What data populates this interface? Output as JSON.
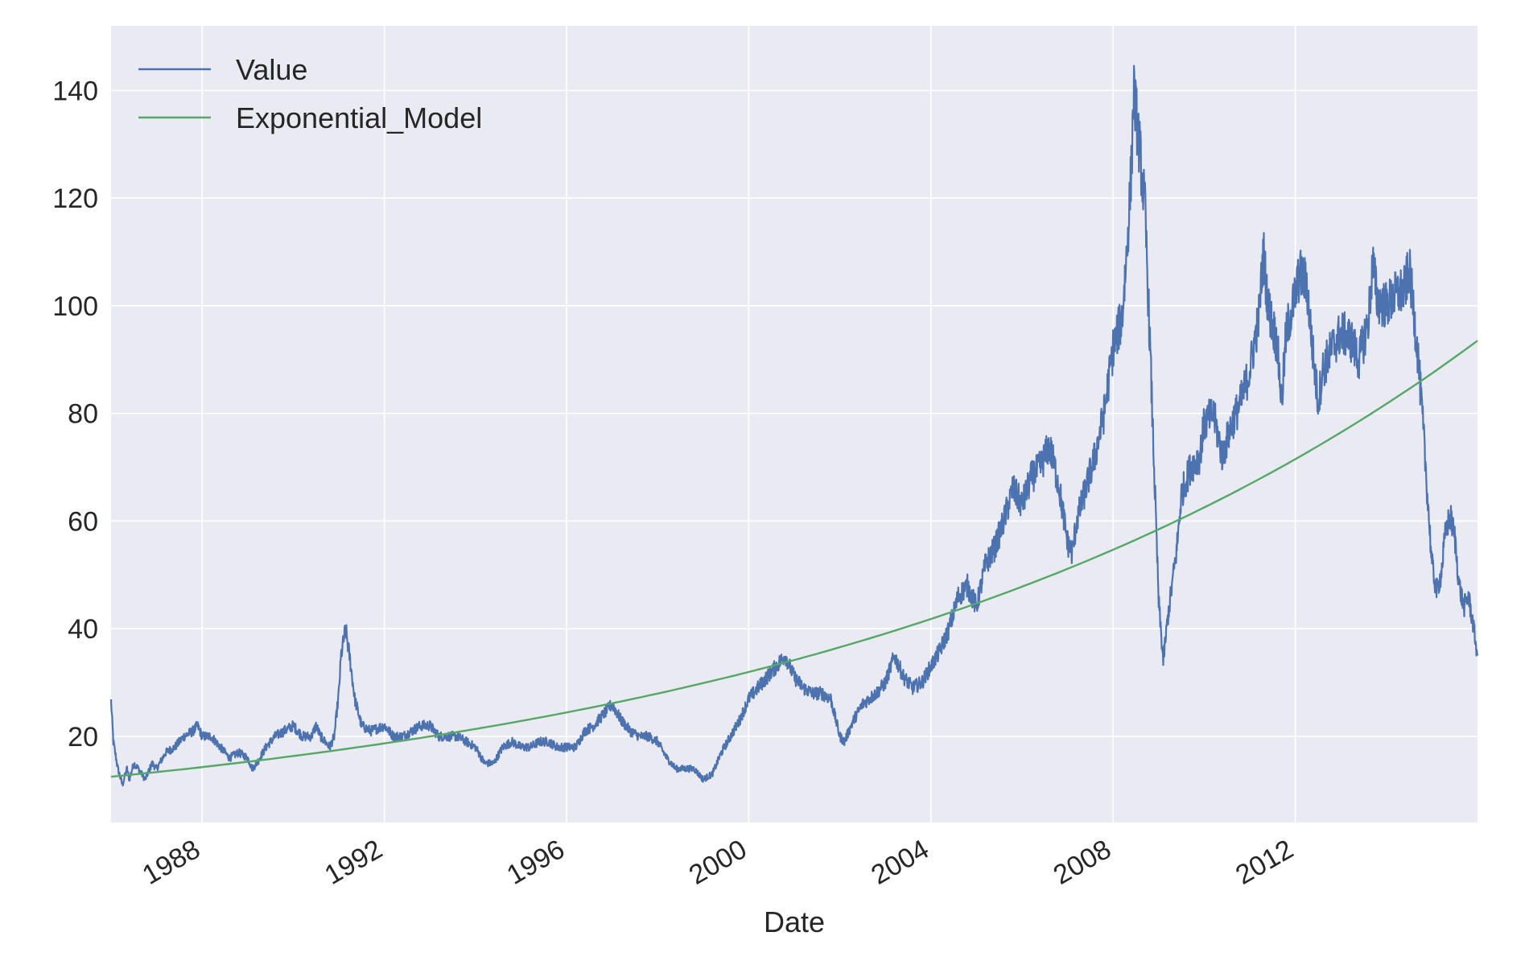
{
  "chart_data": {
    "type": "line",
    "title": "",
    "xlabel": "Date",
    "ylabel": "",
    "xlim": [
      1986.0,
      2016.0
    ],
    "ylim": [
      4,
      152
    ],
    "grid": true,
    "legend_position": "top-left",
    "x_ticks": [
      {
        "value": 1988,
        "label": "1988"
      },
      {
        "value": 1992,
        "label": "1992"
      },
      {
        "value": 1996,
        "label": "1996"
      },
      {
        "value": 2000,
        "label": "2000"
      },
      {
        "value": 2004,
        "label": "2004"
      },
      {
        "value": 2008,
        "label": "2008"
      },
      {
        "value": 2012,
        "label": "2012"
      }
    ],
    "y_ticks": [
      {
        "value": 20,
        "label": "20"
      },
      {
        "value": 40,
        "label": "40"
      },
      {
        "value": 60,
        "label": "60"
      },
      {
        "value": 80,
        "label": "80"
      },
      {
        "value": 100,
        "label": "100"
      },
      {
        "value": 120,
        "label": "120"
      },
      {
        "value": 140,
        "label": "140"
      }
    ],
    "colors": {
      "background": "#EAEAF2",
      "grid": "#FFFFFF",
      "value": "#4C72B0",
      "model": "#55A868"
    },
    "series": [
      {
        "name": "Value",
        "color": "#4C72B0",
        "points": [
          [
            1986.0,
            26.5
          ],
          [
            1986.05,
            19
          ],
          [
            1986.15,
            14
          ],
          [
            1986.25,
            11
          ],
          [
            1986.35,
            14
          ],
          [
            1986.4,
            12
          ],
          [
            1986.5,
            15
          ],
          [
            1986.6,
            14
          ],
          [
            1986.75,
            12
          ],
          [
            1986.9,
            15
          ],
          [
            1987.0,
            14
          ],
          [
            1987.2,
            17
          ],
          [
            1987.4,
            18
          ],
          [
            1987.6,
            20
          ],
          [
            1987.8,
            21
          ],
          [
            1987.9,
            22
          ],
          [
            1988.0,
            20
          ],
          [
            1988.2,
            20
          ],
          [
            1988.4,
            18
          ],
          [
            1988.6,
            16
          ],
          [
            1988.8,
            17
          ],
          [
            1989.0,
            16
          ],
          [
            1989.1,
            14
          ],
          [
            1989.2,
            15
          ],
          [
            1989.4,
            18
          ],
          [
            1989.6,
            20
          ],
          [
            1989.8,
            21
          ],
          [
            1990.0,
            22
          ],
          [
            1990.2,
            20
          ],
          [
            1990.4,
            20
          ],
          [
            1990.5,
            22
          ],
          [
            1990.6,
            20
          ],
          [
            1990.8,
            18
          ],
          [
            1990.9,
            20
          ],
          [
            1991.0,
            28
          ],
          [
            1991.05,
            35
          ],
          [
            1991.15,
            40
          ],
          [
            1991.25,
            34
          ],
          [
            1991.35,
            27
          ],
          [
            1991.5,
            22
          ],
          [
            1991.7,
            21
          ],
          [
            1992.0,
            22
          ],
          [
            1992.2,
            20
          ],
          [
            1992.4,
            20
          ],
          [
            1992.6,
            21
          ],
          [
            1992.8,
            22
          ],
          [
            1993.0,
            22
          ],
          [
            1993.2,
            20
          ],
          [
            1993.4,
            20
          ],
          [
            1993.6,
            20
          ],
          [
            1993.8,
            19
          ],
          [
            1994.0,
            18
          ],
          [
            1994.2,
            15
          ],
          [
            1994.4,
            15
          ],
          [
            1994.6,
            18
          ],
          [
            1994.8,
            19
          ],
          [
            1995.0,
            18
          ],
          [
            1995.2,
            18
          ],
          [
            1995.4,
            19
          ],
          [
            1995.6,
            19
          ],
          [
            1995.8,
            18
          ],
          [
            1996.0,
            18
          ],
          [
            1996.2,
            18
          ],
          [
            1996.4,
            21
          ],
          [
            1996.6,
            22
          ],
          [
            1996.8,
            24
          ],
          [
            1997.0,
            26
          ],
          [
            1997.2,
            23
          ],
          [
            1997.4,
            21
          ],
          [
            1997.6,
            20
          ],
          [
            1997.8,
            20
          ],
          [
            1998.0,
            19
          ],
          [
            1998.2,
            16
          ],
          [
            1998.4,
            14
          ],
          [
            1998.6,
            14
          ],
          [
            1998.8,
            14
          ],
          [
            1999.0,
            12
          ],
          [
            1999.2,
            13
          ],
          [
            1999.4,
            17
          ],
          [
            1999.6,
            20
          ],
          [
            1999.8,
            23
          ],
          [
            2000.0,
            27
          ],
          [
            2000.2,
            29
          ],
          [
            2000.4,
            31
          ],
          [
            2000.6,
            33
          ],
          [
            2000.8,
            35
          ],
          [
            2001.0,
            31
          ],
          [
            2001.2,
            29
          ],
          [
            2001.4,
            28
          ],
          [
            2001.6,
            28
          ],
          [
            2001.8,
            27
          ],
          [
            2002.0,
            20
          ],
          [
            2002.1,
            19
          ],
          [
            2002.3,
            23
          ],
          [
            2002.5,
            26
          ],
          [
            2002.8,
            28
          ],
          [
            2003.0,
            30
          ],
          [
            2003.2,
            35
          ],
          [
            2003.4,
            31
          ],
          [
            2003.6,
            29
          ],
          [
            2003.8,
            30
          ],
          [
            2004.0,
            33
          ],
          [
            2004.2,
            36
          ],
          [
            2004.4,
            40
          ],
          [
            2004.6,
            46
          ],
          [
            2004.8,
            48
          ],
          [
            2005.0,
            44
          ],
          [
            2005.2,
            52
          ],
          [
            2005.4,
            55
          ],
          [
            2005.6,
            60
          ],
          [
            2005.8,
            66
          ],
          [
            2006.0,
            63
          ],
          [
            2006.2,
            68
          ],
          [
            2006.4,
            70
          ],
          [
            2006.6,
            74
          ],
          [
            2006.8,
            67
          ],
          [
            2007.0,
            56
          ],
          [
            2007.1,
            54
          ],
          [
            2007.2,
            60
          ],
          [
            2007.4,
            66
          ],
          [
            2007.6,
            72
          ],
          [
            2007.8,
            80
          ],
          [
            2008.0,
            92
          ],
          [
            2008.1,
            95
          ],
          [
            2008.2,
            98
          ],
          [
            2008.3,
            110
          ],
          [
            2008.4,
            125
          ],
          [
            2008.45,
            140
          ],
          [
            2008.55,
            132
          ],
          [
            2008.7,
            118
          ],
          [
            2008.8,
            95
          ],
          [
            2008.9,
            70
          ],
          [
            2009.0,
            45
          ],
          [
            2009.1,
            34
          ],
          [
            2009.2,
            42
          ],
          [
            2009.4,
            55
          ],
          [
            2009.5,
            65
          ],
          [
            2009.7,
            70
          ],
          [
            2009.9,
            72
          ],
          [
            2010.0,
            78
          ],
          [
            2010.2,
            80
          ],
          [
            2010.4,
            72
          ],
          [
            2010.6,
            78
          ],
          [
            2010.8,
            82
          ],
          [
            2011.0,
            88
          ],
          [
            2011.2,
            98
          ],
          [
            2011.3,
            110
          ],
          [
            2011.4,
            100
          ],
          [
            2011.6,
            93
          ],
          [
            2011.7,
            82
          ],
          [
            2011.8,
            95
          ],
          [
            2012.0,
            102
          ],
          [
            2012.1,
            106
          ],
          [
            2012.25,
            104
          ],
          [
            2012.4,
            90
          ],
          [
            2012.5,
            82
          ],
          [
            2012.6,
            88
          ],
          [
            2012.8,
            92
          ],
          [
            2013.0,
            95
          ],
          [
            2013.2,
            94
          ],
          [
            2013.4,
            90
          ],
          [
            2013.6,
            97
          ],
          [
            2013.7,
            108
          ],
          [
            2013.8,
            101
          ],
          [
            2014.0,
            100
          ],
          [
            2014.2,
            102
          ],
          [
            2014.4,
            103
          ],
          [
            2014.5,
            107
          ],
          [
            2014.6,
            99
          ],
          [
            2014.7,
            90
          ],
          [
            2014.8,
            78
          ],
          [
            2014.9,
            65
          ],
          [
            2015.0,
            52
          ],
          [
            2015.1,
            47
          ],
          [
            2015.2,
            50
          ],
          [
            2015.3,
            58
          ],
          [
            2015.4,
            61
          ],
          [
            2015.5,
            57
          ],
          [
            2015.6,
            48
          ],
          [
            2015.7,
            44
          ],
          [
            2015.8,
            46
          ],
          [
            2015.9,
            41
          ],
          [
            2016.0,
            35
          ]
        ]
      },
      {
        "name": "Exponential_Model",
        "color": "#55A868",
        "start_value": 12.5,
        "end_value": 93.5
      }
    ]
  }
}
